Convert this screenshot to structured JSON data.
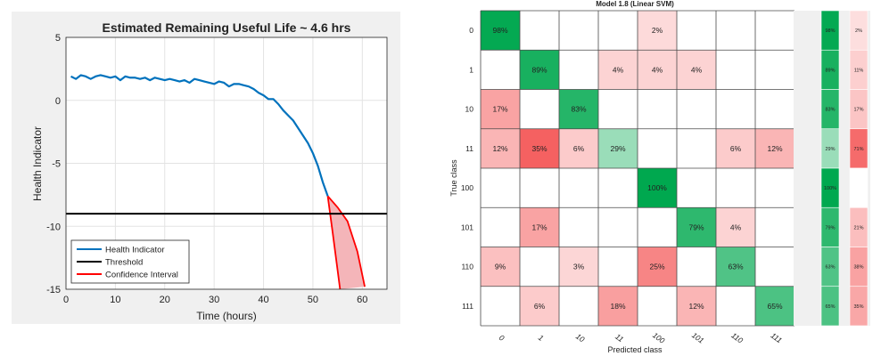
{
  "chart_data": [
    {
      "type": "line",
      "title": "Estimated Remaining Useful Life ~ 4.6 hrs",
      "xlabel": "Time (hours)",
      "ylabel": "Health Indicator",
      "xlim": [
        0,
        65
      ],
      "ylim": [
        -15,
        5
      ],
      "xticks": [
        "0",
        "10",
        "20",
        "30",
        "40",
        "50",
        "60"
      ],
      "yticks": [
        "5",
        "0",
        "-5",
        "-10",
        "-15"
      ],
      "xtick_values": [
        0,
        10,
        20,
        30,
        40,
        50,
        60
      ],
      "ytick_values": [
        5,
        0,
        -5,
        -10,
        -15
      ],
      "grid": true,
      "legend_position": "bottom-left",
      "legend": [
        "Health Indicator",
        "Threshold",
        "Confidence Interval"
      ],
      "series": [
        {
          "name": "Health Indicator",
          "color": "#0072BD",
          "points": [
            [
              1,
              1.9
            ],
            [
              2,
              1.7
            ],
            [
              3,
              2.0
            ],
            [
              4,
              1.9
            ],
            [
              5,
              1.7
            ],
            [
              6,
              1.9
            ],
            [
              7,
              2.0
            ],
            [
              8,
              1.9
            ],
            [
              9,
              1.8
            ],
            [
              10,
              1.9
            ],
            [
              11,
              1.6
            ],
            [
              12,
              1.9
            ],
            [
              13,
              1.8
            ],
            [
              14,
              1.8
            ],
            [
              15,
              1.7
            ],
            [
              16,
              1.8
            ],
            [
              17,
              1.6
            ],
            [
              18,
              1.8
            ],
            [
              19,
              1.7
            ],
            [
              20,
              1.6
            ],
            [
              21,
              1.7
            ],
            [
              22,
              1.6
            ],
            [
              23,
              1.5
            ],
            [
              24,
              1.6
            ],
            [
              25,
              1.4
            ],
            [
              26,
              1.7
            ],
            [
              27,
              1.6
            ],
            [
              28,
              1.5
            ],
            [
              29,
              1.4
            ],
            [
              30,
              1.3
            ],
            [
              31,
              1.5
            ],
            [
              32,
              1.4
            ],
            [
              33,
              1.1
            ],
            [
              34,
              1.3
            ],
            [
              35,
              1.3
            ],
            [
              36,
              1.2
            ],
            [
              37,
              1.1
            ],
            [
              38,
              0.9
            ],
            [
              39,
              0.6
            ],
            [
              40,
              0.4
            ],
            [
              41,
              0.1
            ],
            [
              42,
              0.1
            ],
            [
              43,
              -0.3
            ],
            [
              44,
              -0.8
            ],
            [
              45,
              -1.2
            ],
            [
              46,
              -1.6
            ],
            [
              47,
              -2.2
            ],
            [
              48,
              -2.8
            ],
            [
              49,
              -3.4
            ],
            [
              50,
              -4.2
            ],
            [
              51,
              -5.2
            ],
            [
              52,
              -6.5
            ],
            [
              53,
              -7.6
            ]
          ]
        },
        {
          "name": "Threshold",
          "color": "#000000",
          "points": [
            [
              0,
              -9
            ],
            [
              65,
              -9
            ]
          ]
        },
        {
          "name": "Confidence Interval",
          "color": "#FF0000",
          "upper": [
            [
              53,
              -7.6
            ],
            [
              55,
              -8.5
            ],
            [
              57,
              -9.6
            ],
            [
              59,
              -12.0
            ],
            [
              60.5,
              -14.8
            ]
          ],
          "lower": [
            [
              53,
              -7.6
            ],
            [
              54,
              -10.5
            ],
            [
              55,
              -13.5
            ],
            [
              55.5,
              -15
            ]
          ]
        }
      ]
    },
    {
      "type": "heatmap",
      "title": "Model 1.8 (Linear SVM)",
      "xlabel": "Predicted class",
      "ylabel": "True class",
      "classes": [
        "0",
        "1",
        "10",
        "11",
        "100",
        "101",
        "110",
        "111"
      ],
      "cells": [
        [
          "98%",
          "",
          "",
          "",
          "2%",
          "",
          "",
          ""
        ],
        [
          "",
          "89%",
          "",
          "4%",
          "4%",
          "4%",
          "",
          ""
        ],
        [
          "17%",
          "",
          "83%",
          "",
          "",
          "",
          "",
          ""
        ],
        [
          "12%",
          "35%",
          "6%",
          "29%",
          "",
          "",
          "6%",
          "12%"
        ],
        [
          "",
          "",
          "",
          "",
          "100%",
          "",
          "",
          ""
        ],
        [
          "",
          "17%",
          "",
          "",
          "",
          "79%",
          "4%",
          ""
        ],
        [
          "9%",
          "",
          "3%",
          "",
          "25%",
          "",
          "63%",
          ""
        ],
        [
          "",
          "6%",
          "",
          "18%",
          "",
          "12%",
          "",
          "65%"
        ]
      ],
      "values": [
        [
          98,
          0,
          0,
          0,
          2,
          0,
          0,
          0
        ],
        [
          0,
          89,
          0,
          4,
          4,
          4,
          0,
          0
        ],
        [
          17,
          0,
          83,
          0,
          0,
          0,
          0,
          0
        ],
        [
          12,
          35,
          6,
          29,
          0,
          0,
          6,
          12
        ],
        [
          0,
          0,
          0,
          0,
          100,
          0,
          0,
          0
        ],
        [
          0,
          17,
          0,
          0,
          0,
          79,
          4,
          0
        ],
        [
          9,
          0,
          3,
          0,
          25,
          0,
          63,
          0
        ],
        [
          0,
          6,
          0,
          18,
          0,
          12,
          0,
          65
        ]
      ],
      "tpr": [
        "98%",
        "89%",
        "83%",
        "29%",
        "100%",
        "79%",
        "63%",
        "65%"
      ],
      "fnr": [
        "2%",
        "11%",
        "17%",
        "71%",
        "",
        "21%",
        "38%",
        "35%"
      ],
      "tpr_values": [
        98,
        89,
        83,
        29,
        100,
        79,
        63,
        65
      ],
      "fnr_values": [
        2,
        11,
        17,
        71,
        0,
        21,
        38,
        35
      ],
      "colors": {
        "correct": "#00A84F",
        "error": "#F23A3A"
      }
    }
  ]
}
